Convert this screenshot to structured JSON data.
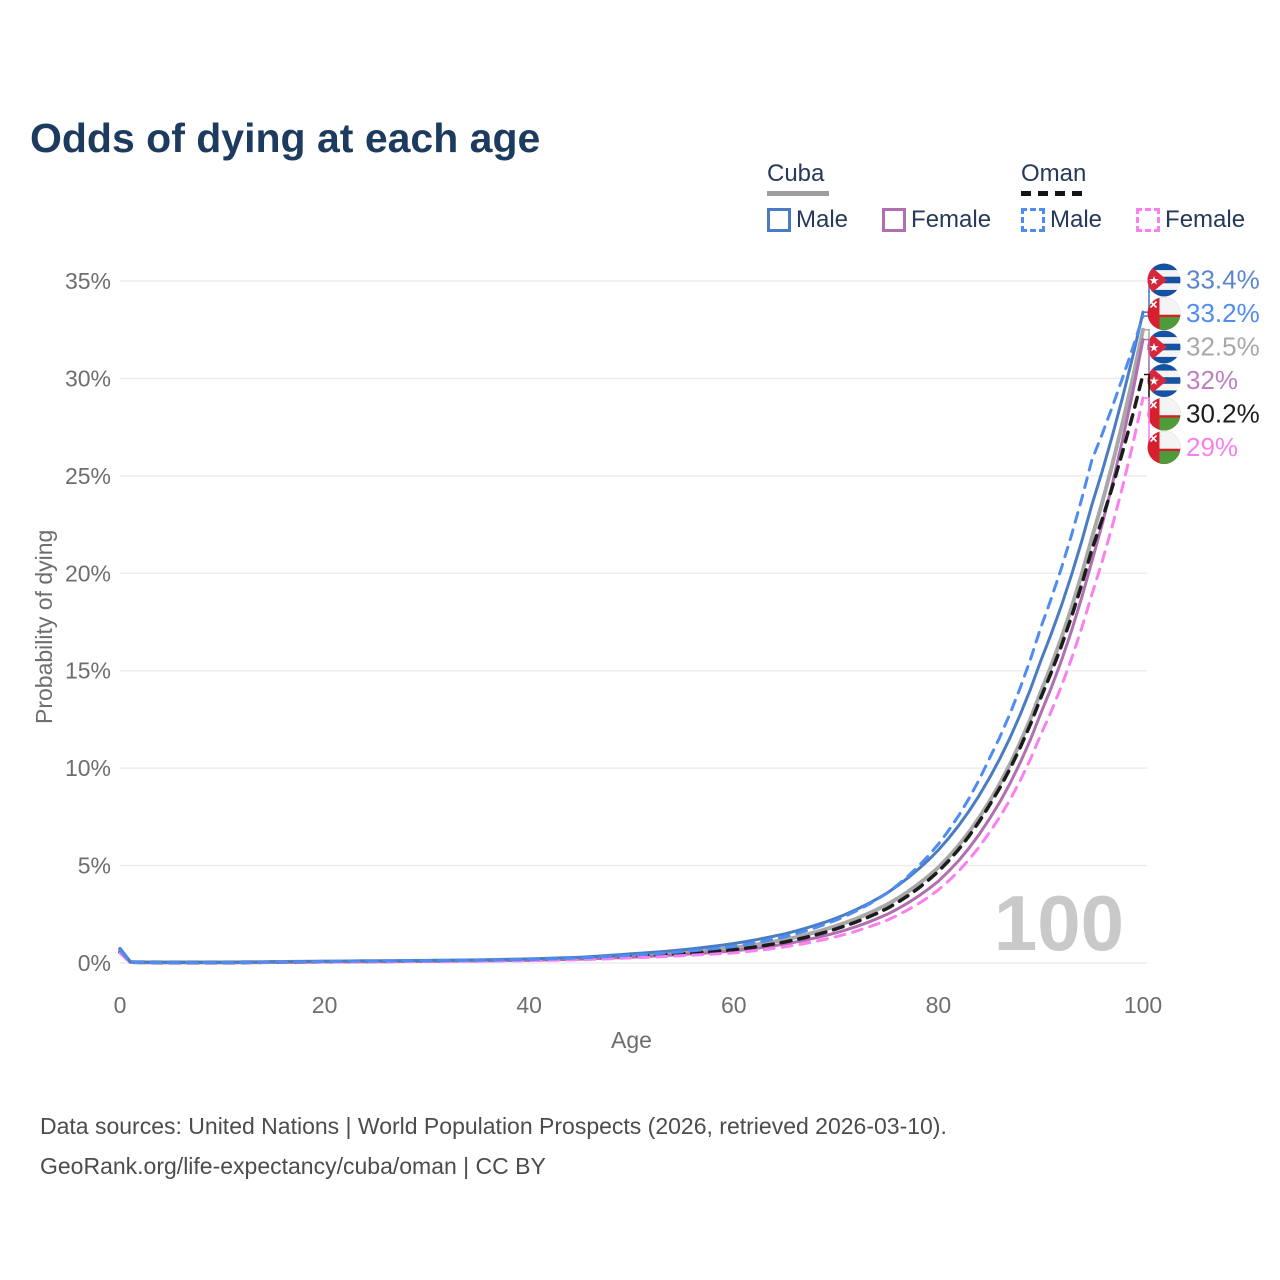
{
  "title": "Odds of dying at each age",
  "legend": {
    "groups": [
      {
        "name": "Cuba",
        "line_style": "solid",
        "swatch_color": "#9e9e9e",
        "items": [
          {
            "label": "Male",
            "color": "#4a7cc2"
          },
          {
            "label": "Female",
            "color": "#b06fb0"
          }
        ]
      },
      {
        "name": "Oman",
        "line_style": "dashed",
        "swatch_color": "#141414",
        "items": [
          {
            "label": "Male",
            "color": "#4f8cf2"
          },
          {
            "label": "Female",
            "color": "#fb80ef"
          }
        ]
      }
    ]
  },
  "axes": {
    "x": {
      "label": "Age",
      "tick_values": [
        0,
        20,
        40,
        60,
        80,
        100
      ],
      "tick_labels": [
        "0",
        "20",
        "40",
        "60",
        "80",
        "100"
      ],
      "range": [
        0,
        100
      ]
    },
    "y": {
      "label": "Probability of dying",
      "tick_values": [
        0,
        5,
        10,
        15,
        20,
        25,
        30,
        35
      ],
      "tick_labels": [
        "0%",
        "5%",
        "10%",
        "15%",
        "20%",
        "25%",
        "30%",
        "35%"
      ],
      "range": [
        0,
        35
      ]
    }
  },
  "watermark": "100",
  "footer": {
    "line1": "Data sources: United Nations | World Population Prospects (2026, retrieved 2026-03-10).",
    "line2": "GeoRank.org/life-expectancy/cuba/oman | CC BY"
  },
  "chart_data": {
    "type": "line",
    "title": "Odds of dying at each age",
    "xlabel": "Age",
    "ylabel": "Probability of dying",
    "xlim": [
      0,
      100
    ],
    "ylim_percent": [
      0,
      35
    ],
    "grid": "horizontal",
    "legend_position": "top-right",
    "ages": [
      0,
      1,
      2,
      5,
      10,
      15,
      20,
      25,
      30,
      35,
      40,
      45,
      50,
      55,
      60,
      65,
      70,
      75,
      80,
      85,
      90,
      95,
      100
    ],
    "series": [
      {
        "name": "Cuba Male",
        "country": "cuba",
        "sex": "male",
        "line_style": "solid",
        "color": "#4a7cc2",
        "label_color": "#5b86ce",
        "end_label": "33.4%",
        "values_percent": [
          0.75,
          0.06,
          0.04,
          0.03,
          0.03,
          0.06,
          0.09,
          0.11,
          0.13,
          0.16,
          0.21,
          0.3,
          0.47,
          0.68,
          1.0,
          1.5,
          2.3,
          3.6,
          5.8,
          9.5,
          15.5,
          23.5,
          33.4
        ]
      },
      {
        "name": "Oman Male",
        "country": "oman",
        "sex": "male",
        "line_style": "dashed",
        "color": "#4f8cf2",
        "label_color": "#4f8cf2",
        "end_label": "33.2%",
        "values_percent": [
          0.65,
          0.05,
          0.03,
          0.02,
          0.02,
          0.05,
          0.08,
          0.1,
          0.12,
          0.14,
          0.18,
          0.26,
          0.4,
          0.58,
          0.85,
          1.35,
          2.2,
          3.6,
          6.1,
          10.5,
          17.2,
          25.8,
          33.2
        ]
      },
      {
        "name": "Cuba Both sexes",
        "country": "cuba",
        "sex": "both",
        "line_style": "solid",
        "color": "#a8a8a8",
        "label_color": "#a8a8a8",
        "end_label": "32.5%",
        "values_percent": [
          0.7,
          0.05,
          0.03,
          0.03,
          0.03,
          0.05,
          0.07,
          0.09,
          0.11,
          0.13,
          0.17,
          0.25,
          0.38,
          0.55,
          0.78,
          1.2,
          1.9,
          3.0,
          4.9,
          8.3,
          13.9,
          21.8,
          32.5
        ]
      },
      {
        "name": "Cuba Female",
        "country": "cuba",
        "sex": "female",
        "line_style": "solid",
        "color": "#b06fb0",
        "label_color": "#c07ec0",
        "end_label": "32%",
        "values_percent": [
          0.6,
          0.05,
          0.03,
          0.02,
          0.02,
          0.04,
          0.06,
          0.07,
          0.09,
          0.11,
          0.14,
          0.2,
          0.3,
          0.44,
          0.62,
          0.98,
          1.55,
          2.5,
          4.2,
          7.4,
          12.8,
          20.6,
          32.0
        ]
      },
      {
        "name": "Oman Both sexes",
        "country": "oman",
        "sex": "both",
        "line_style": "dashed",
        "color": "#1c1c1c",
        "label_color": "#1c1c1c",
        "end_label": "30.2%",
        "values_percent": [
          0.55,
          0.04,
          0.03,
          0.02,
          0.02,
          0.04,
          0.06,
          0.08,
          0.1,
          0.12,
          0.15,
          0.22,
          0.33,
          0.48,
          0.68,
          1.08,
          1.75,
          2.8,
          4.7,
          8.1,
          13.6,
          21.2,
          30.2
        ]
      },
      {
        "name": "Oman Female",
        "country": "oman",
        "sex": "female",
        "line_style": "dashed",
        "color": "#fb80ef",
        "label_color": "#fb80ef",
        "end_label": "29%",
        "values_percent": [
          0.5,
          0.04,
          0.02,
          0.02,
          0.02,
          0.03,
          0.05,
          0.06,
          0.08,
          0.09,
          0.12,
          0.17,
          0.26,
          0.38,
          0.52,
          0.83,
          1.35,
          2.2,
          3.75,
          6.7,
          11.7,
          18.9,
          29.0
        ]
      }
    ],
    "flag_colors": {
      "cuba_blue": "#1552a2",
      "cuba_red": "#d5283d",
      "cuba_white": "#f4f4f4",
      "oman_red": "#d7202d",
      "oman_green": "#4e9b3a",
      "oman_white": "#f4f4f4"
    }
  }
}
